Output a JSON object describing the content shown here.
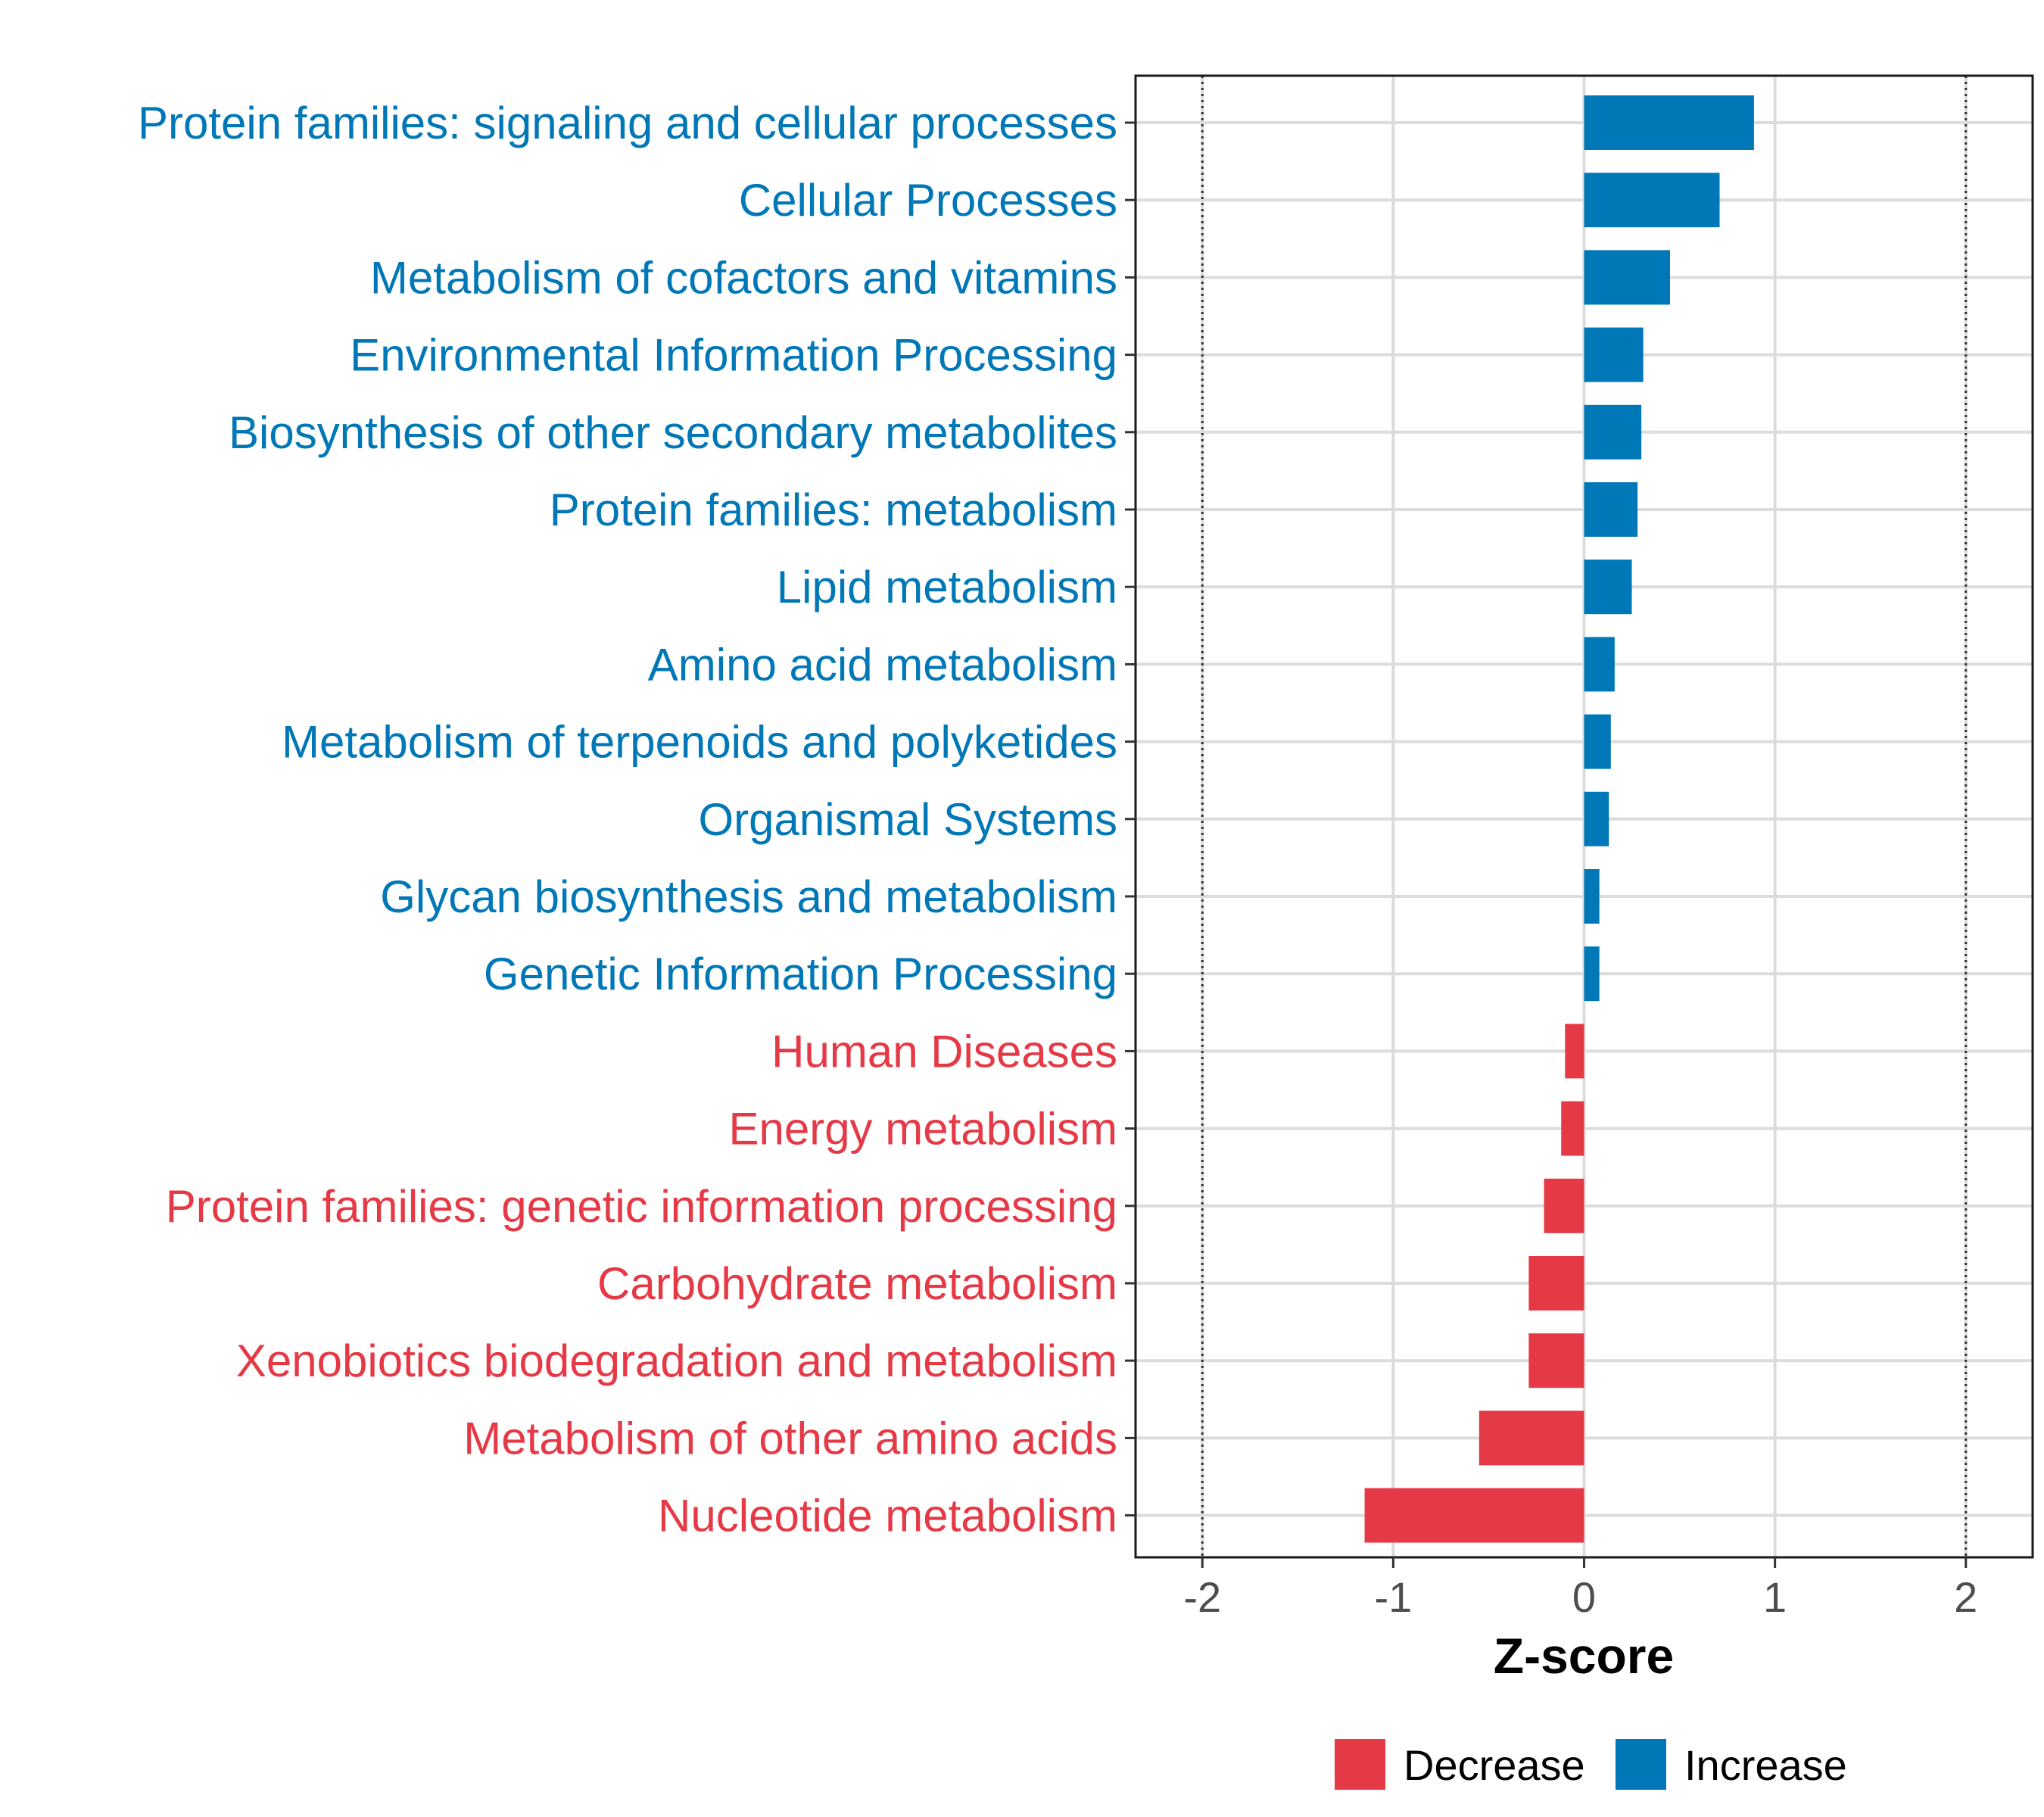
{
  "chart_data": {
    "type": "bar",
    "orientation": "horizontal",
    "xlabel": "Z-score",
    "xlim": [
      -2.35,
      2.35
    ],
    "xticks": [
      -2,
      -1,
      0,
      1,
      2
    ],
    "xtick_labels": [
      "-2",
      "-1",
      "0",
      "1",
      "2"
    ],
    "reference_lines": [
      -2,
      2
    ],
    "grid": true,
    "legend_position": "bottom",
    "colors": {
      "Decrease": "#e63946",
      "Increase": "#0077b6"
    },
    "legend": [
      {
        "label": "Decrease",
        "color": "#e63946"
      },
      {
        "label": "Increase",
        "color": "#0077b6"
      }
    ],
    "categories": [
      "Protein families: signaling and cellular processes",
      "Cellular Processes",
      "Metabolism of cofactors and vitamins",
      "Environmental Information Processing",
      "Biosynthesis of other secondary metabolites",
      "Protein families: metabolism",
      "Lipid metabolism",
      "Amino acid metabolism",
      "Metabolism of terpenoids and polyketides",
      "Organismal Systems",
      "Glycan biosynthesis and metabolism",
      "Genetic Information Processing",
      "Human Diseases",
      "Energy metabolism",
      "Protein families: genetic information processing",
      "Carbohydrate metabolism",
      "Xenobiotics biodegradation and metabolism",
      "Metabolism of other amino acids",
      "Nucleotide metabolism"
    ],
    "values": [
      0.89,
      0.71,
      0.45,
      0.31,
      0.3,
      0.28,
      0.25,
      0.16,
      0.14,
      0.13,
      0.08,
      0.08,
      -0.1,
      -0.12,
      -0.21,
      -0.29,
      -0.29,
      -0.55,
      -1.15
    ],
    "groups": [
      "Increase",
      "Increase",
      "Increase",
      "Increase",
      "Increase",
      "Increase",
      "Increase",
      "Increase",
      "Increase",
      "Increase",
      "Increase",
      "Increase",
      "Decrease",
      "Decrease",
      "Decrease",
      "Decrease",
      "Decrease",
      "Decrease",
      "Decrease"
    ]
  }
}
